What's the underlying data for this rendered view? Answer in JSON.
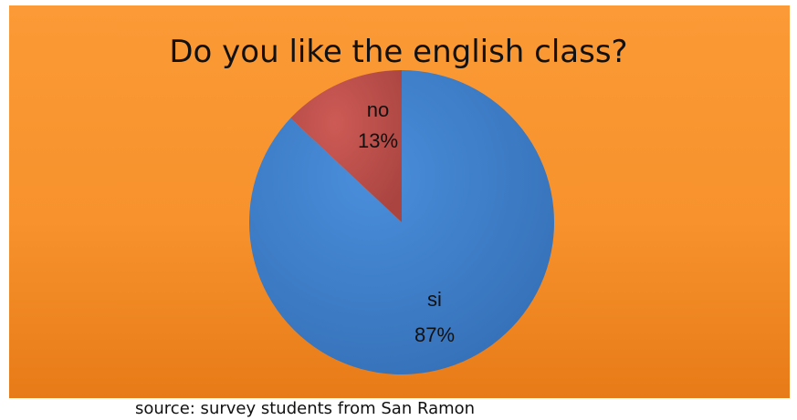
{
  "chart_data": {
    "type": "pie",
    "title": "Do you like the english class?",
    "categories": [
      "si",
      "no"
    ],
    "values": [
      87,
      13
    ],
    "value_labels": [
      "87%",
      "13%"
    ],
    "colors": {
      "si": "#3f80cd",
      "no": "#c0504d",
      "background": "#f7922c"
    },
    "legend": "none",
    "start_angle": "12 o'clock",
    "direction": "clockwise"
  },
  "source": "source: survey students from San Ramon"
}
